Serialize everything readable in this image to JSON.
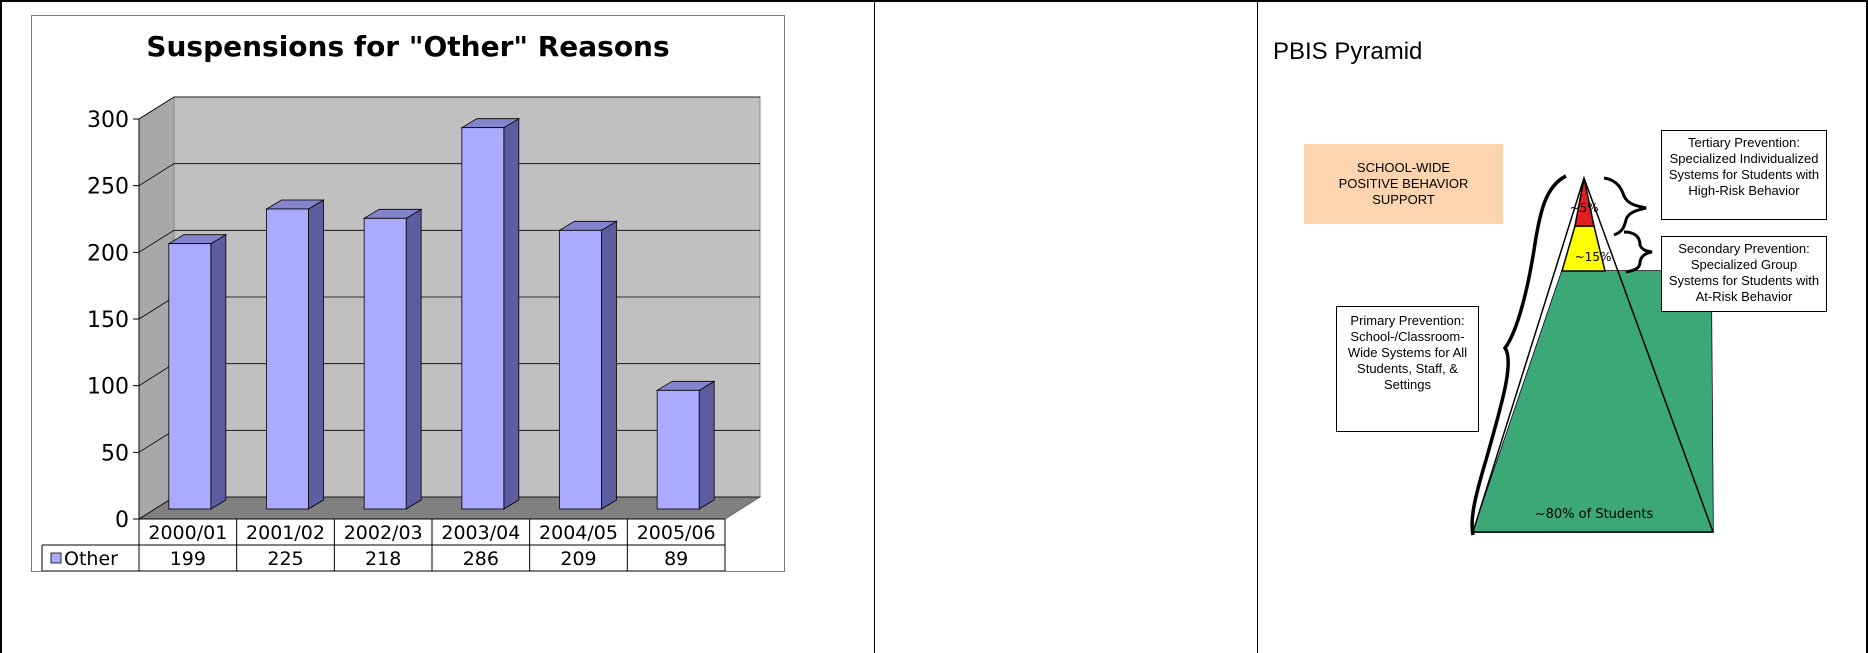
{
  "chart_data": {
    "type": "bar",
    "title": "Suspensions for \"Other\" Reasons",
    "categories": [
      "2000/01",
      "2001/02",
      "2002/03",
      "2003/04",
      "2004/05",
      "2005/06"
    ],
    "series": [
      {
        "name": "Other",
        "values": [
          199,
          225,
          218,
          286,
          209,
          89
        ]
      }
    ],
    "ylim": [
      0,
      300
    ],
    "yticks": [
      "0",
      "50",
      "100",
      "150",
      "200",
      "250",
      "300"
    ],
    "grid": true,
    "legend": "data-table-left",
    "colors": {
      "bar_front": "#aaaaff",
      "bar_side": "#5c5c9e",
      "bar_top": "#8484cc",
      "wall": "#c0c0c0",
      "floor": "#808080"
    }
  },
  "pbis": {
    "title": "PBIS Pyramid",
    "swpbs_label": "SCHOOL-WIDE POSITIVE BEHAVIOR SUPPORT",
    "tiers": {
      "tertiary_pct": "~5%",
      "secondary_pct": "~15%",
      "primary_pct": "~80% of Students"
    },
    "tertiary_text": "Tertiary Prevention: Specialized Individualized Systems for Students with High-Risk Behavior",
    "secondary_text": "Secondary Prevention: Specialized Group Systems for Students with At-Risk Behavior",
    "primary_text": "Primary Prevention: School-/Classroom-Wide Systems for All Students, Staff, & Settings",
    "colors": {
      "tertiary": "#e02020",
      "secondary": "#ffff00",
      "primary": "#3ca878",
      "swpbs_bg": "#fcd5b0"
    }
  }
}
